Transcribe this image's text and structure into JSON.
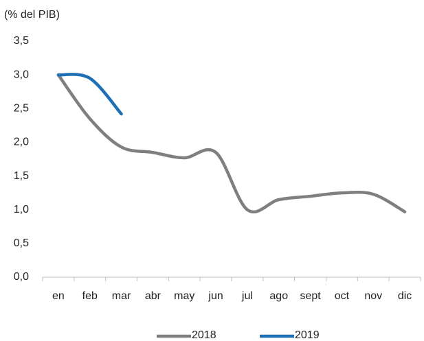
{
  "chart_data": {
    "type": "line",
    "subtitle": "(% del PIB)",
    "categories": [
      "en",
      "feb",
      "mar",
      "abr",
      "may",
      "jun",
      "jul",
      "ago",
      "sept",
      "oct",
      "nov",
      "dic"
    ],
    "series": [
      {
        "name": "2018",
        "color": "#7f7f7f",
        "values": [
          3.0,
          2.35,
          1.93,
          1.85,
          1.77,
          1.85,
          1.0,
          1.15,
          1.2,
          1.25,
          1.23,
          0.97
        ]
      },
      {
        "name": "2019",
        "color": "#1f6fb5",
        "values": [
          3.0,
          2.95,
          2.42,
          null,
          null,
          null,
          null,
          null,
          null,
          null,
          null,
          null
        ]
      }
    ],
    "ylim": [
      0,
      3.5
    ],
    "yticks": [
      {
        "value": 0,
        "label": "0,0"
      },
      {
        "value": 0.5,
        "label": "0,5"
      },
      {
        "value": 1,
        "label": "1,0"
      },
      {
        "value": 1.5,
        "label": "1,5"
      },
      {
        "value": 2,
        "label": "2,0"
      },
      {
        "value": 2.5,
        "label": "2,5"
      },
      {
        "value": 3,
        "label": "3,0"
      },
      {
        "value": 3.5,
        "label": "3,5"
      }
    ],
    "grid": false,
    "legend": "bottom"
  }
}
